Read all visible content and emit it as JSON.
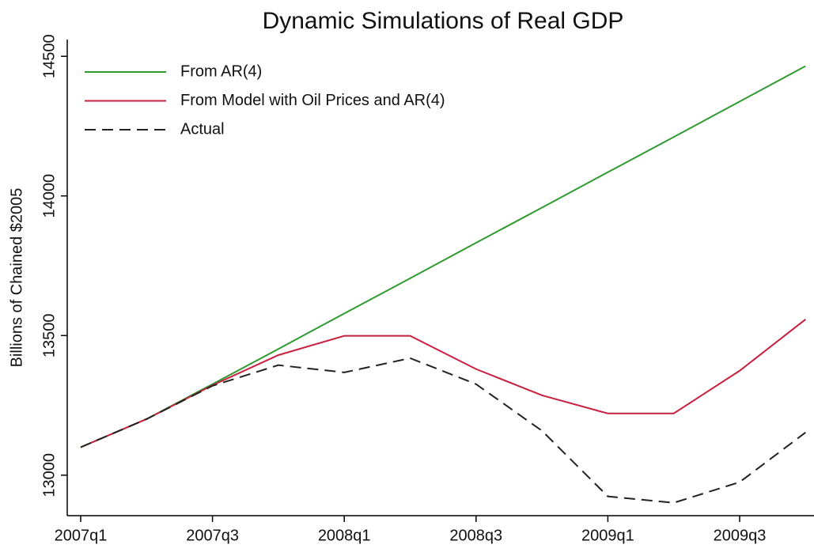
{
  "chart_data": {
    "type": "line",
    "title": "Dynamic Simulations of Real GDP",
    "y_label": "Billions of Chained $2005",
    "categories": [
      "2007q1",
      null,
      "2007q3",
      null,
      "2008q1",
      null,
      "2008q3",
      null,
      "2009q1",
      null,
      "2009q3",
      null
    ],
    "series": [
      {
        "name": "From AR(4)",
        "color": "#2f9a2f",
        "dash": false,
        "values": [
          13100,
          13201,
          13326,
          13452,
          13579,
          13705,
          13832,
          13958,
          14085,
          14211,
          14338,
          14465
        ]
      },
      {
        "name": "From Model with Oil Prices and AR(4)",
        "color": "#c8203f",
        "dash": false,
        "values": [
          13100,
          13201,
          13322,
          13430,
          13499,
          13499,
          13380,
          13286,
          13221,
          13221,
          13374,
          13558
        ]
      },
      {
        "name": "Actual",
        "color": "#222222",
        "dash": true,
        "values": [
          13100,
          13201,
          13320,
          13394,
          13368,
          13419,
          13326,
          13159,
          12924,
          12901,
          12975,
          13153
        ]
      }
    ],
    "ylim": [
      12855,
      14560
    ],
    "yticks": [
      13000,
      13500,
      14000,
      14500
    ],
    "grid": false,
    "legend": "top-left"
  }
}
